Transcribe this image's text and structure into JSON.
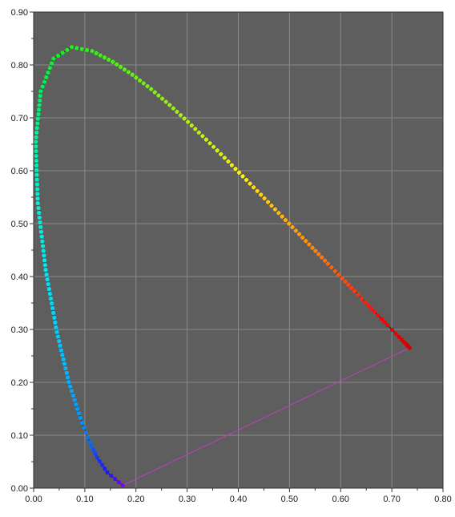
{
  "chart_data": {
    "type": "scatter",
    "title": "",
    "xlabel": "",
    "ylabel": "",
    "xlim": [
      0,
      0.8
    ],
    "ylim": [
      0,
      0.9
    ],
    "grid": true,
    "x_ticks": [
      "0.00",
      "0.10",
      "0.20",
      "0.30",
      "0.40",
      "0.50",
      "0.60",
      "0.70",
      "0.80"
    ],
    "y_ticks": [
      "0.00",
      "0.10",
      "0.20",
      "0.30",
      "0.40",
      "0.50",
      "0.60",
      "0.70",
      "0.80",
      "0.90"
    ],
    "colors": {
      "plot_background": "#5e5e5e",
      "grid": "#8a8a8a",
      "locus_line": "#1a1a1a",
      "purple_line": "#c040c0"
    },
    "locus_anchors": [
      {
        "x": 0.1741,
        "y": 0.005,
        "color": "#8000ff"
      },
      {
        "x": 0.144,
        "y": 0.0297,
        "color": "#1a1aff"
      },
      {
        "x": 0.1241,
        "y": 0.0578,
        "color": "#1a33ff"
      },
      {
        "x": 0.1096,
        "y": 0.0868,
        "color": "#0070ff"
      },
      {
        "x": 0.0913,
        "y": 0.1327,
        "color": "#0098ff"
      },
      {
        "x": 0.0687,
        "y": 0.2007,
        "color": "#00b0ff"
      },
      {
        "x": 0.0454,
        "y": 0.295,
        "color": "#00d0ff"
      },
      {
        "x": 0.0235,
        "y": 0.4127,
        "color": "#00e8f0"
      },
      {
        "x": 0.0082,
        "y": 0.5384,
        "color": "#00f0d8"
      },
      {
        "x": 0.0039,
        "y": 0.6548,
        "color": "#00f0a0"
      },
      {
        "x": 0.0139,
        "y": 0.7502,
        "color": "#00f060"
      },
      {
        "x": 0.0389,
        "y": 0.812,
        "color": "#10ee30"
      },
      {
        "x": 0.0743,
        "y": 0.8338,
        "color": "#20ee20"
      },
      {
        "x": 0.1142,
        "y": 0.8262,
        "color": "#38ee18"
      },
      {
        "x": 0.1547,
        "y": 0.8059,
        "color": "#50ee18"
      },
      {
        "x": 0.1929,
        "y": 0.7816,
        "color": "#68ee18"
      },
      {
        "x": 0.2296,
        "y": 0.7543,
        "color": "#80ee18"
      },
      {
        "x": 0.2658,
        "y": 0.7243,
        "color": "#98ee18"
      },
      {
        "x": 0.3016,
        "y": 0.6923,
        "color": "#b0ee18"
      },
      {
        "x": 0.3373,
        "y": 0.6589,
        "color": "#c8ee18"
      },
      {
        "x": 0.3731,
        "y": 0.6245,
        "color": "#e0ee18"
      },
      {
        "x": 0.4087,
        "y": 0.5896,
        "color": "#ffee10"
      },
      {
        "x": 0.4441,
        "y": 0.5547,
        "color": "#ffd010"
      },
      {
        "x": 0.4788,
        "y": 0.5202,
        "color": "#ffb810"
      },
      {
        "x": 0.5125,
        "y": 0.4866,
        "color": "#ffa010"
      },
      {
        "x": 0.5448,
        "y": 0.4544,
        "color": "#ff8810"
      },
      {
        "x": 0.5752,
        "y": 0.4242,
        "color": "#ff6a10"
      },
      {
        "x": 0.6029,
        "y": 0.3965,
        "color": "#ff5010"
      },
      {
        "x": 0.627,
        "y": 0.3725,
        "color": "#ff3810"
      },
      {
        "x": 0.6482,
        "y": 0.3514,
        "color": "#ff2010"
      },
      {
        "x": 0.6658,
        "y": 0.334,
        "color": "#ff1010"
      },
      {
        "x": 0.6801,
        "y": 0.3197,
        "color": "#ff0000"
      },
      {
        "x": 0.6915,
        "y": 0.3083,
        "color": "#ff0000"
      },
      {
        "x": 0.7006,
        "y": 0.2993,
        "color": "#f00000"
      },
      {
        "x": 0.7079,
        "y": 0.292,
        "color": "#f00000"
      },
      {
        "x": 0.714,
        "y": 0.2859,
        "color": "#e80000"
      },
      {
        "x": 0.719,
        "y": 0.2809,
        "color": "#e80000"
      },
      {
        "x": 0.723,
        "y": 0.277,
        "color": "#e00000"
      },
      {
        "x": 0.726,
        "y": 0.274,
        "color": "#e00000"
      },
      {
        "x": 0.7283,
        "y": 0.2717,
        "color": "#d80000"
      },
      {
        "x": 0.73,
        "y": 0.27,
        "color": "#d80000"
      },
      {
        "x": 0.732,
        "y": 0.268,
        "color": "#d00000"
      },
      {
        "x": 0.7347,
        "y": 0.2653,
        "color": "#d00000"
      }
    ],
    "purple_line": [
      {
        "x": 0.7347,
        "y": 0.2653
      },
      {
        "x": 0.1741,
        "y": 0.005
      }
    ]
  }
}
